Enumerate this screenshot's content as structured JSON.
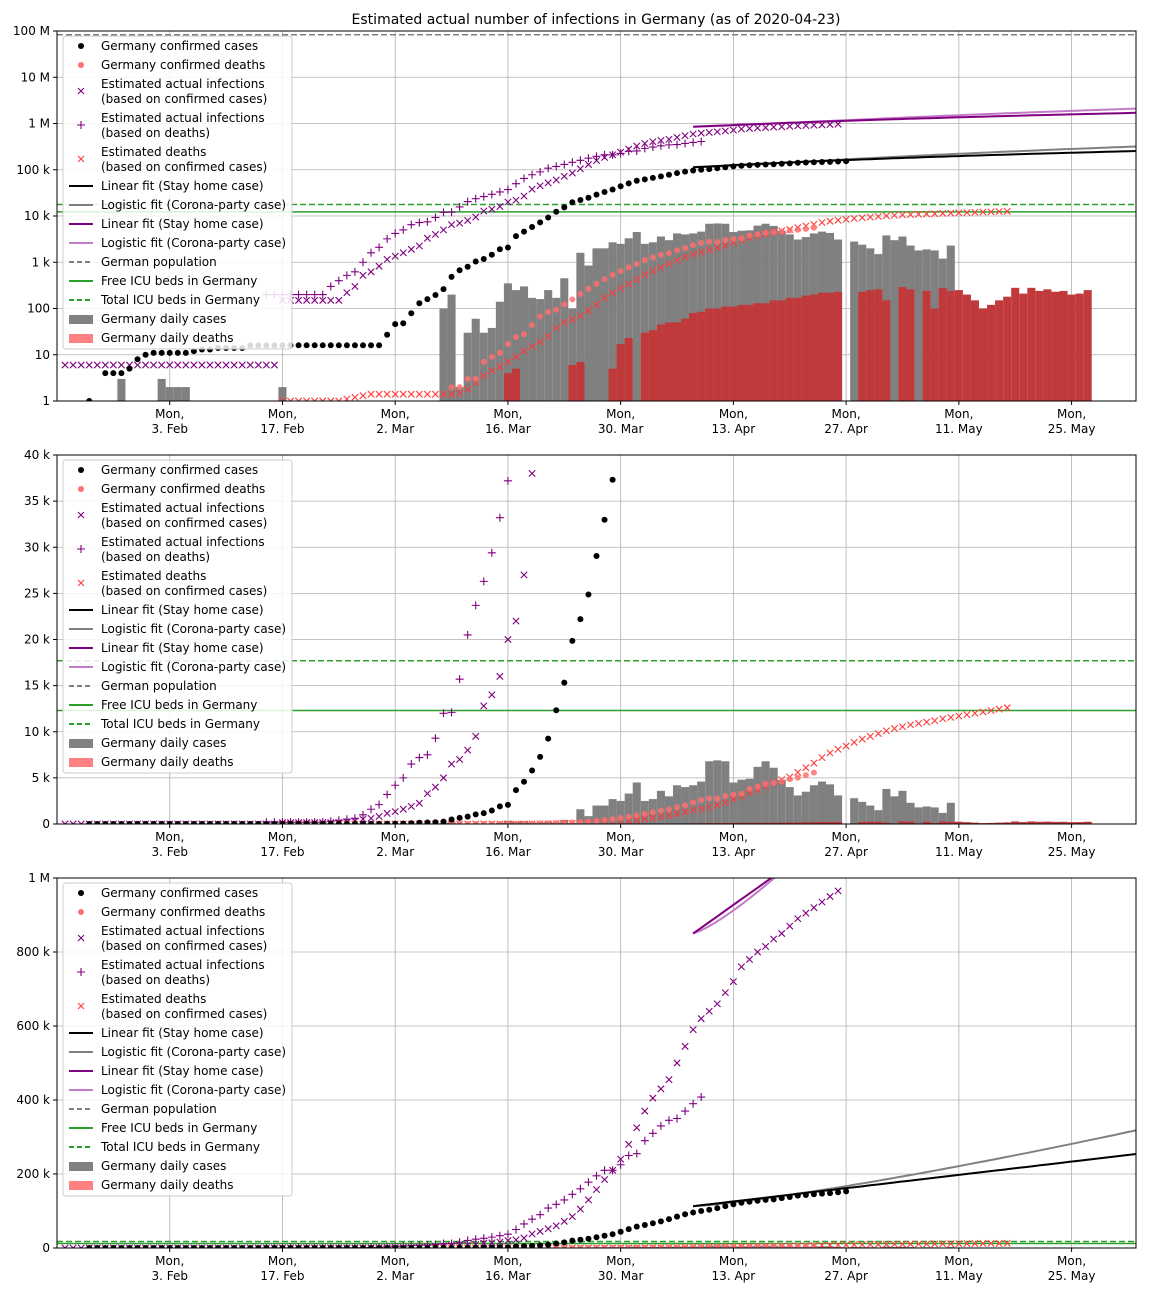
{
  "title": "Estimated actual number of infections in Germany (as of 2020-04-23)",
  "colors": {
    "confirmed_cases": "#000000",
    "confirmed_deaths": "#ff6f6f",
    "estimated_infections": "#800080",
    "estimated_deaths": "#ff3b3b",
    "linear_fit": "#000000",
    "logistic_fit": "#808080",
    "linear_fit_infections": "#800080",
    "logistic_fit_infections": "#c27bc8",
    "population": "#808080",
    "icu": "#2ca02c",
    "daily_cases": "#808080",
    "daily_deaths": "#ff8080",
    "grid": "#b0b0b0"
  },
  "legend": [
    {
      "id": "confirmed_cases",
      "label": "Germany confirmed cases",
      "kind": "dot"
    },
    {
      "id": "confirmed_deaths",
      "label": "Germany confirmed deaths",
      "kind": "dot"
    },
    {
      "id": "est_inf_cases",
      "label": "Estimated actual infections\n(based on confirmed cases)",
      "kind": "x"
    },
    {
      "id": "est_inf_deaths",
      "label": "Estimated actual infections\n(based on deaths)",
      "kind": "plus"
    },
    {
      "id": "est_deaths",
      "label": "Estimated deaths\n(based on confirmed cases)",
      "kind": "x"
    },
    {
      "id": "lin_fit",
      "label": "Linear fit (Stay home case)",
      "kind": "line"
    },
    {
      "id": "log_fit",
      "label": "Logistic fit (Corona-party case)",
      "kind": "line"
    },
    {
      "id": "lin_fit_inf",
      "label": "Linear fit (Stay home case)",
      "kind": "line"
    },
    {
      "id": "log_fit_inf",
      "label": "Logistic fit (Corona-party case)",
      "kind": "line"
    },
    {
      "id": "population",
      "label": "German population",
      "kind": "dash"
    },
    {
      "id": "icu_free",
      "label": "Free ICU beds in Germany",
      "kind": "line"
    },
    {
      "id": "icu_total",
      "label": "Total ICU beds in Germany",
      "kind": "dash"
    },
    {
      "id": "daily_cases",
      "label": "Germany daily cases",
      "kind": "box"
    },
    {
      "id": "daily_deaths",
      "label": "Germany daily deaths",
      "kind": "box"
    }
  ],
  "chart_data": {
    "type": "line",
    "x_axis": {
      "start": "2020-01-20",
      "end": "2020-06-02",
      "ticks": [
        {
          "date": "2020-02-03",
          "label": "Mon,\n3. Feb"
        },
        {
          "date": "2020-02-17",
          "label": "Mon,\n17. Feb"
        },
        {
          "date": "2020-03-02",
          "label": "Mon,\n2. Mar"
        },
        {
          "date": "2020-03-16",
          "label": "Mon,\n16. Mar"
        },
        {
          "date": "2020-03-30",
          "label": "Mon,\n30. Mar"
        },
        {
          "date": "2020-04-13",
          "label": "Mon,\n13. Apr"
        },
        {
          "date": "2020-04-27",
          "label": "Mon,\n27. Apr"
        },
        {
          "date": "2020-05-11",
          "label": "Mon,\n11. May"
        },
        {
          "date": "2020-05-25",
          "label": "Mon,\n25. May"
        }
      ]
    },
    "panels": [
      {
        "scale": "log",
        "ylim": [
          1,
          100000000
        ],
        "yticks": [
          {
            "v": 1,
            "label": "1"
          },
          {
            "v": 10,
            "label": "10"
          },
          {
            "v": 100,
            "label": "100"
          },
          {
            "v": 1000,
            "label": "1 k"
          },
          {
            "v": 10000,
            "label": "10 k"
          },
          {
            "v": 100000,
            "label": "100 k"
          },
          {
            "v": 1000000,
            "label": "1 M"
          },
          {
            "v": 10000000,
            "label": "10 M"
          },
          {
            "v": 100000000,
            "label": "100 M"
          }
        ]
      },
      {
        "scale": "linear",
        "ylim": [
          0,
          40000
        ],
        "yticks": [
          {
            "v": 0,
            "label": "0"
          },
          {
            "v": 5000,
            "label": "5 k"
          },
          {
            "v": 10000,
            "label": "10 k"
          },
          {
            "v": 15000,
            "label": "15 k"
          },
          {
            "v": 20000,
            "label": "20 k"
          },
          {
            "v": 25000,
            "label": "25 k"
          },
          {
            "v": 30000,
            "label": "30 k"
          },
          {
            "v": 35000,
            "label": "35 k"
          },
          {
            "v": 40000,
            "label": "40 k"
          }
        ]
      },
      {
        "scale": "linear",
        "ylim": [
          0,
          1000000
        ],
        "yticks": [
          {
            "v": 0,
            "label": "0"
          },
          {
            "v": 200000,
            "label": "200 k"
          },
          {
            "v": 400000,
            "label": "400 k"
          },
          {
            "v": 600000,
            "label": "600 k"
          },
          {
            "v": 800000,
            "label": "800 k"
          },
          {
            "v": 1000000,
            "label": "1 M"
          }
        ]
      }
    ],
    "horizontal_lines": {
      "german_population": 83000000,
      "free_icu_beds": 12300,
      "total_icu_beds": 17700
    },
    "confirmed_cases": {
      "start": "2020-01-24",
      "values": [
        1,
        0,
        4,
        4,
        4,
        5,
        8,
        10,
        11,
        11,
        11,
        11,
        11,
        12,
        13,
        13,
        14,
        14,
        14,
        14,
        16,
        16,
        16,
        16,
        16,
        16,
        16,
        16,
        16,
        16,
        16,
        16,
        16,
        16,
        16,
        16,
        16,
        27,
        46,
        48,
        79,
        130,
        159,
        196,
        262,
        482,
        670,
        799,
        1040,
        1176,
        1457,
        1908,
        2078,
        3675,
        4585,
        5795,
        7272,
        9257,
        12327,
        15320,
        19848,
        22213,
        24873,
        29056,
        32986,
        37323,
        43938,
        50871,
        57695,
        62095,
        66885,
        71808,
        77872,
        84794,
        91159,
        96092,
        100123,
        103374,
        107663,
        113296,
        118181,
        122171,
        124908,
        127854,
        130072,
        131359,
        134753,
        137698,
        141397,
        143342,
        145184,
        147065,
        148291,
        150648,
        153129
      ]
    },
    "confirmed_deaths": {
      "start": "2020-03-09",
      "values": [
        2,
        2,
        3,
        3,
        7,
        9,
        11,
        17,
        24,
        28,
        44,
        67,
        84,
        94,
        123,
        157,
        206,
        267,
        342,
        433,
        533,
        645,
        775,
        920,
        1107,
        1275,
        1444,
        1584,
        1810,
        2016,
        2349,
        2607,
        2767,
        2736,
        3022,
        3194,
        3294,
        3804,
        4052,
        4352,
        4459,
        4586,
        4862,
        5033,
        5279,
        5575
      ]
    },
    "estimated_infections_cases": {
      "start": "2020-01-21",
      "values": [
        6,
        6,
        6,
        6,
        6,
        6,
        6,
        6,
        6,
        6,
        6,
        6,
        6,
        6,
        6,
        6,
        6,
        6,
        6,
        6,
        6,
        6,
        6,
        6,
        6,
        6,
        6,
        150,
        150,
        150,
        150,
        150,
        150,
        150,
        150,
        220,
        300,
        520,
        620,
        820,
        1150,
        1350,
        1600,
        1900,
        2250,
        3300,
        4000,
        5000,
        6500,
        7000,
        8000,
        9500,
        12800,
        14000,
        16000,
        20000,
        22000,
        27000,
        38000,
        45000,
        52000,
        60000,
        72000,
        85000,
        105000,
        130000,
        158000,
        185000,
        210000,
        240000,
        280000,
        325000,
        370000,
        405000,
        430000,
        455000,
        500000,
        545000,
        590000,
        620000,
        640000,
        660000,
        690000,
        720000,
        760000,
        780000,
        800000,
        815000,
        835000,
        850000,
        870000,
        890000,
        905000,
        920000,
        935000,
        950000,
        965000
      ]
    },
    "estimated_infections_deaths": {
      "start": "2020-02-15",
      "values": [
        200,
        200,
        200,
        200,
        200,
        200,
        200,
        200,
        300,
        400,
        520,
        620,
        1000,
        1600,
        2100,
        3200,
        4200,
        5000,
        6500,
        7200,
        7500,
        9300,
        12000,
        12100,
        15700,
        20500,
        23700,
        26300,
        29400,
        33200,
        37200,
        50000,
        65000,
        78000,
        90000,
        108000,
        118000,
        130000,
        145000,
        160000,
        178000,
        195000,
        210000,
        210000,
        225000,
        250000,
        255000,
        290000,
        310000,
        330000,
        345000,
        350000,
        370000,
        390000,
        408000
      ]
    },
    "estimated_deaths": {
      "start": "2020-02-17",
      "values": [
        1,
        1,
        1,
        1,
        1,
        1,
        1,
        1,
        1.1,
        1.2,
        1.3,
        1.4,
        1.4,
        1.4,
        1.4,
        1.4,
        1.4,
        1.4,
        1.4,
        1.4,
        1.4,
        1.4,
        1.5,
        1.8,
        2.5,
        3.5,
        4.5,
        5.5,
        7,
        9,
        12,
        15,
        19,
        25,
        38,
        50,
        58,
        70,
        90,
        120,
        170,
        220,
        275,
        340,
        420,
        540,
        650,
        775,
        920,
        1100,
        1300,
        1500,
        1650,
        1850,
        2050,
        2300,
        2700,
        3000,
        3350,
        3700,
        4100,
        4500,
        4800,
        5100,
        5600,
        6100,
        6600,
        7200,
        7700,
        8100,
        8450,
        8850,
        9200,
        9500,
        9800,
        10100,
        10350,
        10550,
        10750,
        10900,
        11050,
        11200,
        11400,
        11550,
        11700,
        11850,
        12000,
        12150,
        12300,
        12450,
        12600
      ]
    },
    "daily_cases": {
      "start": "2020-01-28",
      "values": [
        3,
        0,
        0,
        0,
        0,
        3,
        2,
        2,
        2,
        0,
        0,
        0,
        0,
        0,
        0,
        0,
        0,
        0,
        0,
        0,
        2,
        0,
        0,
        0,
        0,
        0,
        0,
        0,
        0,
        0,
        0,
        0,
        0,
        0,
        0,
        0,
        0,
        0,
        0,
        0,
        100,
        200,
        2,
        30,
        60,
        30,
        38,
        140,
        350,
        250,
        300,
        170,
        160,
        250,
        170,
        450,
        100,
        1600,
        850,
        2000,
        2000,
        2700,
        2500,
        3300,
        4500,
        2500,
        2700,
        3600,
        3000,
        4200,
        4000,
        4200,
        4600,
        6800,
        6900,
        6800,
        4500,
        4800,
        4900,
        6200,
        6800,
        6100,
        4800,
        4000,
        3100,
        3500,
        4200,
        4600,
        4300,
        3100,
        1,
        2800,
        2400,
        2000,
        1500,
        3800,
        3000,
        3600,
        2300,
        1800,
        1900,
        1800,
        1200,
        2300
      ]
    },
    "daily_deaths": {
      "start": "2020-03-09",
      "values": [
        1,
        1,
        1,
        0,
        1,
        0,
        1,
        4,
        5,
        0,
        0,
        0,
        0,
        0,
        0,
        6,
        7,
        0,
        0,
        0,
        5,
        17,
        23,
        0,
        30,
        34,
        45,
        50,
        50,
        60,
        80,
        85,
        100,
        100,
        110,
        110,
        120,
        120,
        130,
        130,
        150,
        150,
        170,
        170,
        190,
        200,
        220,
        220,
        230,
        0,
        0,
        230,
        250,
        260,
        150,
        0,
        290,
        260,
        0,
        240,
        100,
        280,
        240,
        250,
        200,
        150,
        100,
        120,
        150,
        180,
        280,
        210,
        280,
        240,
        260,
        230,
        240,
        200,
        210,
        250
      ]
    },
    "fits": {
      "from": "2020-04-08",
      "to": "2020-06-02",
      "cases_linear": [
        113000,
        254000
      ],
      "cases_logistic": [
        113000,
        318000
      ],
      "infections_linear": [
        850000,
        1700000
      ],
      "infections_logistic": [
        850000,
        2100000
      ]
    }
  }
}
